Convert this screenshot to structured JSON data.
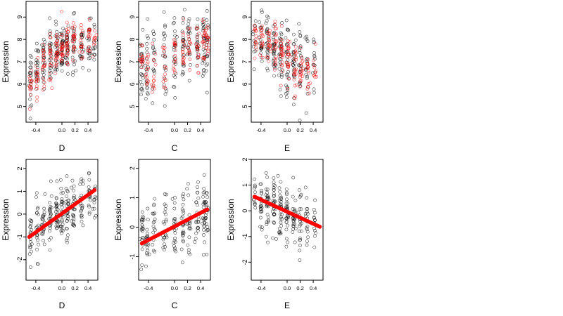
{
  "colors": {
    "observed": "#000000",
    "fitted": "#ff0000",
    "background": "#ffffff"
  },
  "chart_data": [
    {
      "type": "scatter",
      "panel": "D-raw",
      "xlabel": "D",
      "ylabel": "Expression",
      "xlim": [
        -0.55,
        0.55
      ],
      "ylim": [
        4.3,
        9.7
      ],
      "xticks": [
        -0.4,
        0.0,
        0.2,
        0.4
      ],
      "xtick_labels": [
        "-0.4",
        "0.0",
        "0.2",
        "0.4"
      ],
      "yticks": [
        5,
        6,
        7,
        8,
        9
      ],
      "ytick_labels": [
        "5",
        "6",
        "7",
        "8",
        "9"
      ],
      "grid": false,
      "legend": "none",
      "series": [
        {
          "role": "observed",
          "color": "#000000",
          "marker": "open-circle",
          "clusters": [
            {
              "x": -0.48,
              "mean": 6.3,
              "sd": 0.7,
              "n": 22
            },
            {
              "x": -0.38,
              "mean": 6.6,
              "sd": 0.6,
              "n": 22
            },
            {
              "x": -0.28,
              "mean": 7.0,
              "sd": 0.6,
              "n": 24
            },
            {
              "x": -0.18,
              "mean": 7.2,
              "sd": 0.7,
              "n": 26
            },
            {
              "x": -0.08,
              "mean": 7.5,
              "sd": 0.6,
              "n": 28
            },
            {
              "x": 0.0,
              "mean": 7.6,
              "sd": 0.6,
              "n": 30
            },
            {
              "x": 0.08,
              "mean": 7.7,
              "sd": 0.6,
              "n": 28
            },
            {
              "x": 0.18,
              "mean": 7.8,
              "sd": 0.6,
              "n": 26
            },
            {
              "x": 0.3,
              "mean": 7.7,
              "sd": 0.6,
              "n": 22
            },
            {
              "x": 0.42,
              "mean": 7.9,
              "sd": 0.6,
              "n": 18
            },
            {
              "x": 0.5,
              "mean": 7.8,
              "sd": 0.5,
              "n": 12
            }
          ]
        },
        {
          "role": "fitted",
          "color": "#ff0000",
          "marker": "open-circle",
          "clusters": [
            {
              "x": -0.48,
              "mean": 5.9,
              "sd": 0.3,
              "n": 14
            },
            {
              "x": -0.38,
              "mean": 6.3,
              "sd": 0.4,
              "n": 16
            },
            {
              "x": -0.28,
              "mean": 6.8,
              "sd": 0.5,
              "n": 18
            },
            {
              "x": -0.18,
              "mean": 7.1,
              "sd": 0.5,
              "n": 20
            },
            {
              "x": -0.08,
              "mean": 7.4,
              "sd": 0.5,
              "n": 22
            },
            {
              "x": 0.0,
              "mean": 7.6,
              "sd": 0.5,
              "n": 24
            },
            {
              "x": 0.08,
              "mean": 7.7,
              "sd": 0.5,
              "n": 22
            },
            {
              "x": 0.18,
              "mean": 7.8,
              "sd": 0.5,
              "n": 20
            },
            {
              "x": 0.3,
              "mean": 7.8,
              "sd": 0.4,
              "n": 16
            },
            {
              "x": 0.42,
              "mean": 7.9,
              "sd": 0.4,
              "n": 14
            },
            {
              "x": 0.5,
              "mean": 8.0,
              "sd": 0.3,
              "n": 10
            }
          ]
        }
      ]
    },
    {
      "type": "scatter",
      "panel": "C-raw",
      "xlabel": "C",
      "ylabel": "Expression",
      "xlim": [
        -0.55,
        0.55
      ],
      "ylim": [
        4.3,
        9.7
      ],
      "xticks": [
        -0.4,
        0.0,
        0.2,
        0.4
      ],
      "xtick_labels": [
        "-0.4",
        "0.0",
        "0.2",
        "0.4"
      ],
      "yticks": [
        5,
        6,
        7,
        8,
        9
      ],
      "ytick_labels": [
        "5",
        "6",
        "7",
        "8",
        "9"
      ],
      "grid": false,
      "legend": "none",
      "series": [
        {
          "role": "observed",
          "color": "#000000",
          "marker": "open-circle",
          "clusters": [
            {
              "x": -0.5,
              "mean": 6.9,
              "sd": 0.8,
              "n": 24
            },
            {
              "x": -0.42,
              "mean": 7.0,
              "sd": 0.8,
              "n": 20
            },
            {
              "x": -0.32,
              "mean": 7.0,
              "sd": 0.9,
              "n": 18
            },
            {
              "x": -0.15,
              "mean": 7.2,
              "sd": 0.9,
              "n": 22
            },
            {
              "x": 0.0,
              "mean": 7.4,
              "sd": 0.9,
              "n": 24
            },
            {
              "x": 0.13,
              "mean": 7.5,
              "sd": 0.9,
              "n": 24
            },
            {
              "x": 0.22,
              "mean": 7.6,
              "sd": 0.8,
              "n": 20
            },
            {
              "x": 0.35,
              "mean": 7.7,
              "sd": 0.9,
              "n": 22
            },
            {
              "x": 0.45,
              "mean": 7.8,
              "sd": 0.9,
              "n": 26
            },
            {
              "x": 0.5,
              "mean": 7.9,
              "sd": 0.8,
              "n": 20
            }
          ]
        },
        {
          "role": "fitted",
          "color": "#ff0000",
          "marker": "open-circle",
          "clusters": [
            {
              "x": -0.5,
              "mean": 7.0,
              "sd": 0.4,
              "n": 14
            },
            {
              "x": -0.42,
              "mean": 6.7,
              "sd": 0.6,
              "n": 14
            },
            {
              "x": -0.32,
              "mean": 6.8,
              "sd": 0.7,
              "n": 12
            },
            {
              "x": -0.15,
              "mean": 7.0,
              "sd": 0.6,
              "n": 14
            },
            {
              "x": 0.0,
              "mean": 7.2,
              "sd": 0.6,
              "n": 16
            },
            {
              "x": 0.13,
              "mean": 7.5,
              "sd": 0.6,
              "n": 16
            },
            {
              "x": 0.22,
              "mean": 7.6,
              "sd": 0.5,
              "n": 14
            },
            {
              "x": 0.35,
              "mean": 7.6,
              "sd": 0.6,
              "n": 16
            },
            {
              "x": 0.45,
              "mean": 7.9,
              "sd": 0.5,
              "n": 18
            },
            {
              "x": 0.5,
              "mean": 8.0,
              "sd": 0.4,
              "n": 14
            }
          ]
        }
      ]
    },
    {
      "type": "scatter",
      "panel": "E-raw",
      "xlabel": "E",
      "ylabel": "Expression",
      "xlim": [
        -0.55,
        0.55
      ],
      "ylim": [
        4.3,
        9.7
      ],
      "xticks": [
        -0.4,
        0.0,
        0.2,
        0.4
      ],
      "xtick_labels": [
        "-0.4",
        "0.0",
        "0.2",
        "0.4"
      ],
      "yticks": [
        5,
        6,
        7,
        8,
        9
      ],
      "ytick_labels": [
        "5",
        "6",
        "7",
        "8",
        "9"
      ],
      "grid": false,
      "legend": "none",
      "series": [
        {
          "role": "observed",
          "color": "#000000",
          "marker": "open-circle",
          "clusters": [
            {
              "x": -0.5,
              "mean": 8.0,
              "sd": 0.6,
              "n": 12
            },
            {
              "x": -0.4,
              "mean": 7.8,
              "sd": 0.7,
              "n": 22
            },
            {
              "x": -0.3,
              "mean": 7.7,
              "sd": 0.7,
              "n": 26
            },
            {
              "x": -0.2,
              "mean": 7.5,
              "sd": 0.7,
              "n": 30
            },
            {
              "x": -0.1,
              "mean": 7.3,
              "sd": 0.7,
              "n": 30
            },
            {
              "x": 0.0,
              "mean": 7.1,
              "sd": 0.8,
              "n": 30
            },
            {
              "x": 0.1,
              "mean": 7.0,
              "sd": 0.8,
              "n": 26
            },
            {
              "x": 0.2,
              "mean": 6.9,
              "sd": 0.8,
              "n": 22
            },
            {
              "x": 0.3,
              "mean": 6.8,
              "sd": 0.8,
              "n": 18
            },
            {
              "x": 0.42,
              "mean": 6.9,
              "sd": 0.8,
              "n": 14
            }
          ]
        },
        {
          "role": "fitted",
          "color": "#ff0000",
          "marker": "open-circle",
          "clusters": [
            {
              "x": -0.48,
              "mean": 8.0,
              "sd": 0.3,
              "n": 14
            },
            {
              "x": -0.38,
              "mean": 8.0,
              "sd": 0.4,
              "n": 16
            },
            {
              "x": -0.28,
              "mean": 7.9,
              "sd": 0.4,
              "n": 18
            },
            {
              "x": -0.18,
              "mean": 7.7,
              "sd": 0.5,
              "n": 20
            },
            {
              "x": -0.08,
              "mean": 7.4,
              "sd": 0.5,
              "n": 22
            },
            {
              "x": 0.02,
              "mean": 7.1,
              "sd": 0.6,
              "n": 22
            },
            {
              "x": 0.12,
              "mean": 6.8,
              "sd": 0.6,
              "n": 20
            },
            {
              "x": 0.22,
              "mean": 6.5,
              "sd": 0.5,
              "n": 18
            },
            {
              "x": 0.32,
              "mean": 6.4,
              "sd": 0.5,
              "n": 14
            },
            {
              "x": 0.42,
              "mean": 6.5,
              "sd": 0.5,
              "n": 10
            }
          ]
        }
      ]
    },
    {
      "type": "scatter",
      "panel": "D-adjusted",
      "xlabel": "D",
      "ylabel": "Expression",
      "xlim": [
        -0.55,
        0.55
      ],
      "ylim": [
        -2.9,
        2.4
      ],
      "xticks": [
        -0.4,
        0.0,
        0.2,
        0.4
      ],
      "xtick_labels": [
        "-0.4",
        "0.0",
        "0.2",
        "0.4"
      ],
      "yticks": [
        -2,
        -1,
        0,
        1,
        2
      ],
      "ytick_labels": [
        "-2",
        "-1",
        "0",
        "1",
        "2"
      ],
      "grid": false,
      "legend": "none",
      "series": [
        {
          "role": "observed",
          "color": "#000000",
          "marker": "open-circle",
          "clusters": [
            {
              "x": -0.48,
              "mean": -0.9,
              "sd": 0.6,
              "n": 20
            },
            {
              "x": -0.38,
              "mean": -0.7,
              "sd": 0.6,
              "n": 22
            },
            {
              "x": -0.28,
              "mean": -0.5,
              "sd": 0.6,
              "n": 24
            },
            {
              "x": -0.18,
              "mean": -0.3,
              "sd": 0.6,
              "n": 26
            },
            {
              "x": -0.08,
              "mean": -0.1,
              "sd": 0.6,
              "n": 28
            },
            {
              "x": 0.0,
              "mean": 0.0,
              "sd": 0.6,
              "n": 30
            },
            {
              "x": 0.08,
              "mean": 0.1,
              "sd": 0.6,
              "n": 28
            },
            {
              "x": 0.18,
              "mean": 0.4,
              "sd": 0.6,
              "n": 26
            },
            {
              "x": 0.3,
              "mean": 0.6,
              "sd": 0.6,
              "n": 22
            },
            {
              "x": 0.42,
              "mean": 0.9,
              "sd": 0.6,
              "n": 18
            },
            {
              "x": 0.5,
              "mean": 1.0,
              "sd": 0.5,
              "n": 12
            }
          ]
        },
        {
          "role": "fitted",
          "color": "#ff0000",
          "marker": "filled-circle",
          "line": {
            "x0": -0.5,
            "y0": -1.0,
            "x1": 0.5,
            "y1": 1.05
          }
        }
      ]
    },
    {
      "type": "scatter",
      "panel": "C-adjusted",
      "xlabel": "C",
      "ylabel": "Expression",
      "xlim": [
        -0.55,
        0.55
      ],
      "ylim": [
        -1.8,
        2.3
      ],
      "xticks": [
        -0.4,
        0.0,
        0.2,
        0.4
      ],
      "xtick_labels": [
        "-0.4",
        "0.0",
        "0.2",
        "0.4"
      ],
      "yticks": [
        -1,
        0,
        1,
        2
      ],
      "ytick_labels": [
        "-1",
        "0",
        "1",
        "2"
      ],
      "grid": false,
      "legend": "none",
      "series": [
        {
          "role": "observed",
          "color": "#000000",
          "marker": "open-circle",
          "clusters": [
            {
              "x": -0.5,
              "mean": -0.4,
              "sd": 0.6,
              "n": 24
            },
            {
              "x": -0.42,
              "mean": -0.4,
              "sd": 0.5,
              "n": 20
            },
            {
              "x": -0.32,
              "mean": -0.3,
              "sd": 0.6,
              "n": 18
            },
            {
              "x": -0.15,
              "mean": -0.1,
              "sd": 0.6,
              "n": 22
            },
            {
              "x": 0.0,
              "mean": 0.0,
              "sd": 0.6,
              "n": 24
            },
            {
              "x": 0.13,
              "mean": 0.1,
              "sd": 0.6,
              "n": 24
            },
            {
              "x": 0.22,
              "mean": 0.2,
              "sd": 0.6,
              "n": 20
            },
            {
              "x": 0.35,
              "mean": 0.4,
              "sd": 0.6,
              "n": 22
            },
            {
              "x": 0.45,
              "mean": 0.5,
              "sd": 0.6,
              "n": 26
            },
            {
              "x": 0.5,
              "mean": 0.5,
              "sd": 0.6,
              "n": 20
            }
          ]
        },
        {
          "role": "fitted",
          "color": "#ff0000",
          "marker": "filled-circle",
          "line": {
            "x0": -0.5,
            "y0": -0.55,
            "x1": 0.5,
            "y1": 0.6
          }
        }
      ]
    },
    {
      "type": "scatter",
      "panel": "E-adjusted",
      "xlabel": "E",
      "ylabel": "Expression",
      "xlim": [
        -0.55,
        0.55
      ],
      "ylim": [
        -2.7,
        2.0
      ],
      "xticks": [
        -0.4,
        0.0,
        0.2,
        0.4
      ],
      "xtick_labels": [
        "-0.4",
        "0.0",
        "0.2",
        "0.4"
      ],
      "yticks": [
        -2,
        -1,
        0,
        1,
        2
      ],
      "ytick_labels": [
        "-2",
        "-1",
        "0",
        "1",
        "2"
      ],
      "grid": false,
      "legend": "none",
      "series": [
        {
          "role": "observed",
          "color": "#000000",
          "marker": "open-circle",
          "clusters": [
            {
              "x": -0.5,
              "mean": 0.6,
              "sd": 0.5,
              "n": 12
            },
            {
              "x": -0.4,
              "mean": 0.4,
              "sd": 0.6,
              "n": 22
            },
            {
              "x": -0.3,
              "mean": 0.3,
              "sd": 0.6,
              "n": 26
            },
            {
              "x": -0.2,
              "mean": 0.2,
              "sd": 0.6,
              "n": 30
            },
            {
              "x": -0.1,
              "mean": 0.1,
              "sd": 0.6,
              "n": 30
            },
            {
              "x": 0.0,
              "mean": -0.1,
              "sd": 0.6,
              "n": 30
            },
            {
              "x": 0.1,
              "mean": -0.2,
              "sd": 0.6,
              "n": 26
            },
            {
              "x": 0.2,
              "mean": -0.3,
              "sd": 0.6,
              "n": 22
            },
            {
              "x": 0.3,
              "mean": -0.4,
              "sd": 0.6,
              "n": 18
            },
            {
              "x": 0.42,
              "mean": -0.5,
              "sd": 0.6,
              "n": 14
            }
          ]
        },
        {
          "role": "fitted",
          "color": "#ff0000",
          "marker": "filled-circle",
          "line": {
            "x0": -0.5,
            "y0": 0.55,
            "x1": 0.5,
            "y1": -0.62
          }
        }
      ]
    }
  ]
}
